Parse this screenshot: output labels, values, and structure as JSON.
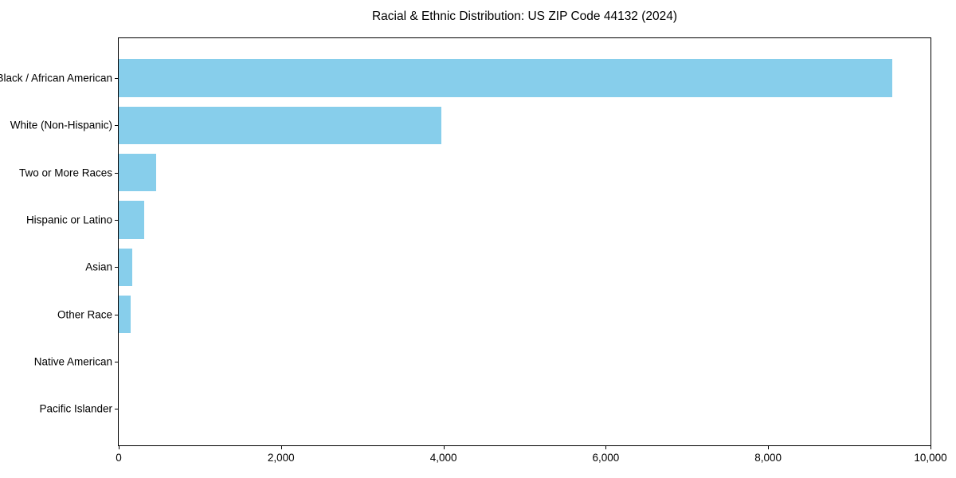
{
  "title": "Racial & Ethnic Distribution: US ZIP Code 44132 (2024)",
  "colors": {
    "bar": "#87CEEB",
    "axis": "#000000",
    "text": "#000000",
    "background": "#FFFFFF"
  },
  "chart_data": {
    "type": "bar",
    "orientation": "horizontal",
    "title": "Racial & Ethnic Distribution: US ZIP Code 44132 (2024)",
    "xlabel": "",
    "ylabel": "",
    "categories": [
      "Black / African American",
      "White (Non-Hispanic)",
      "Two or More Races",
      "Hispanic or Latino",
      "Asian",
      "Other Race",
      "Native American",
      "Pacific Islander"
    ],
    "values": [
      9530,
      3970,
      460,
      315,
      170,
      150,
      0,
      0
    ],
    "xlim": [
      0,
      10000
    ],
    "x_ticks": [
      0,
      2000,
      4000,
      6000,
      8000,
      10000
    ],
    "x_tick_labels": [
      "0",
      "2,000",
      "4,000",
      "6,000",
      "8,000",
      "10,000"
    ],
    "grid": false,
    "legend": false,
    "bar_color": "#87CEEB"
  }
}
